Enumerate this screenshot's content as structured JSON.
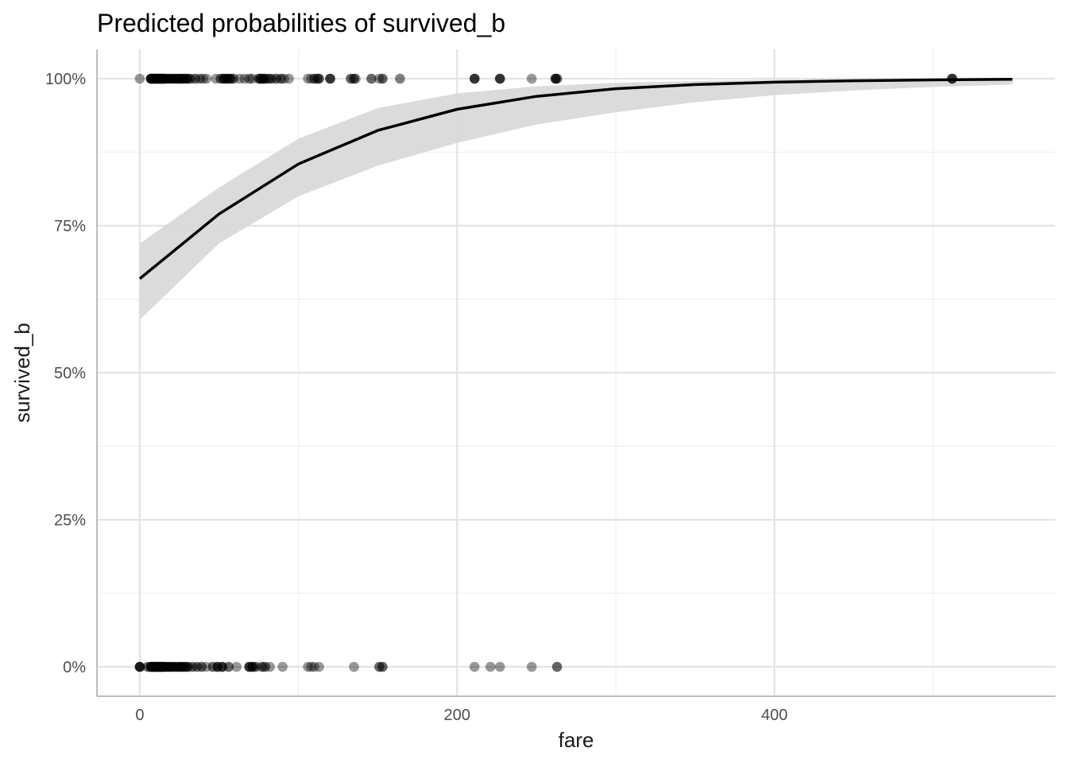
{
  "chart_data": {
    "type": "line",
    "title": "Predicted probabilities of survived_b",
    "xlabel": "fare",
    "ylabel": "survived_b",
    "xlim": [
      -27,
      577
    ],
    "ylim": [
      -0.05,
      1.05
    ],
    "x_ticks": [
      0,
      200,
      400
    ],
    "x_tick_labels": [
      "0",
      "200",
      "400"
    ],
    "x_minor_ticks": [
      100,
      300,
      500
    ],
    "y_ticks": [
      0,
      0.25,
      0.5,
      0.75,
      1.0
    ],
    "y_tick_labels": [
      "0%",
      "25%",
      "50%",
      "75%",
      "100%"
    ],
    "y_minor_ticks": [
      0.125,
      0.375,
      0.625,
      0.875
    ],
    "grid": true,
    "legend": "none",
    "colors": {
      "line": "#000000",
      "ribbon": "#d9d9d9",
      "points": "#000000"
    },
    "prediction": {
      "x": [
        0,
        50,
        100,
        150,
        200,
        250,
        300,
        350,
        400,
        450,
        500,
        550
      ],
      "y": [
        0.66,
        0.77,
        0.855,
        0.912,
        0.948,
        0.97,
        0.983,
        0.99,
        0.994,
        0.9965,
        0.998,
        0.999
      ],
      "ci_low": [
        0.59,
        0.72,
        0.8,
        0.852,
        0.891,
        0.922,
        0.943,
        0.96,
        0.972,
        0.98,
        0.986,
        0.99
      ],
      "ci_high": [
        0.72,
        0.815,
        0.898,
        0.95,
        0.975,
        0.987,
        0.993,
        0.996,
        0.998,
        0.999,
        0.9995,
        0.9998
      ]
    },
    "observations_survived": [
      {
        "x": 0,
        "o": 0.4
      },
      {
        "x": 7,
        "o": 0.9
      },
      {
        "x": 8,
        "o": 0.9
      },
      {
        "x": 9,
        "o": 0.9
      },
      {
        "x": 10,
        "o": 0.9
      },
      {
        "x": 11,
        "o": 0.9
      },
      {
        "x": 12,
        "o": 0.9
      },
      {
        "x": 13,
        "o": 0.9
      },
      {
        "x": 14,
        "o": 0.9
      },
      {
        "x": 15,
        "o": 0.9
      },
      {
        "x": 16,
        "o": 0.8
      },
      {
        "x": 18,
        "o": 0.8
      },
      {
        "x": 20,
        "o": 0.8
      },
      {
        "x": 22,
        "o": 0.8
      },
      {
        "x": 24,
        "o": 0.8
      },
      {
        "x": 26,
        "o": 0.9
      },
      {
        "x": 28,
        "o": 0.8
      },
      {
        "x": 30,
        "o": 0.8
      },
      {
        "x": 32,
        "o": 0.6
      },
      {
        "x": 35,
        "o": 0.6
      },
      {
        "x": 38,
        "o": 0.5
      },
      {
        "x": 40,
        "o": 0.4
      },
      {
        "x": 42,
        "o": 0.4
      },
      {
        "x": 48,
        "o": 0.4
      },
      {
        "x": 51,
        "o": 0.6
      },
      {
        "x": 53,
        "o": 0.8
      },
      {
        "x": 55,
        "o": 0.8
      },
      {
        "x": 57,
        "o": 0.8
      },
      {
        "x": 59,
        "o": 0.6
      },
      {
        "x": 63,
        "o": 0.4
      },
      {
        "x": 66,
        "o": 0.4
      },
      {
        "x": 69,
        "o": 0.5
      },
      {
        "x": 71,
        "o": 0.4
      },
      {
        "x": 75,
        "o": 0.6
      },
      {
        "x": 76,
        "o": 0.6
      },
      {
        "x": 77,
        "o": 0.6
      },
      {
        "x": 78,
        "o": 0.6
      },
      {
        "x": 79,
        "o": 0.6
      },
      {
        "x": 81,
        "o": 0.6
      },
      {
        "x": 83,
        "o": 0.6
      },
      {
        "x": 86,
        "o": 0.6
      },
      {
        "x": 89,
        "o": 0.6
      },
      {
        "x": 91,
        "o": 0.4
      },
      {
        "x": 94,
        "o": 0.4
      },
      {
        "x": 106,
        "o": 0.4
      },
      {
        "x": 108,
        "o": 0.4
      },
      {
        "x": 110,
        "o": 0.6
      },
      {
        "x": 112,
        "o": 0.6
      },
      {
        "x": 113,
        "o": 0.6
      },
      {
        "x": 120,
        "o": 0.8
      },
      {
        "x": 133,
        "o": 0.6
      },
      {
        "x": 135,
        "o": 0.6
      },
      {
        "x": 136,
        "o": 0.4
      },
      {
        "x": 146,
        "o": 0.6
      },
      {
        "x": 151,
        "o": 0.4
      },
      {
        "x": 153,
        "o": 0.6
      },
      {
        "x": 164,
        "o": 0.5
      },
      {
        "x": 211,
        "o": 0.8
      },
      {
        "x": 227,
        "o": 0.8
      },
      {
        "x": 247,
        "o": 0.4
      },
      {
        "x": 262,
        "o": 0.8
      },
      {
        "x": 263,
        "o": 0.6
      },
      {
        "x": 512,
        "o": 0.8
      }
    ],
    "observations_died": [
      {
        "x": 0,
        "o": 0.9
      },
      {
        "x": 5,
        "o": 0.6
      },
      {
        "x": 7,
        "o": 0.9
      },
      {
        "x": 8,
        "o": 0.9
      },
      {
        "x": 9,
        "o": 0.9
      },
      {
        "x": 10,
        "o": 0.9
      },
      {
        "x": 11,
        "o": 0.9
      },
      {
        "x": 12,
        "o": 0.9
      },
      {
        "x": 13,
        "o": 0.9
      },
      {
        "x": 14,
        "o": 0.9
      },
      {
        "x": 15,
        "o": 0.9
      },
      {
        "x": 16,
        "o": 0.9
      },
      {
        "x": 18,
        "o": 0.9
      },
      {
        "x": 20,
        "o": 0.9
      },
      {
        "x": 22,
        "o": 0.8
      },
      {
        "x": 24,
        "o": 0.8
      },
      {
        "x": 26,
        "o": 0.9
      },
      {
        "x": 28,
        "o": 0.8
      },
      {
        "x": 30,
        "o": 0.8
      },
      {
        "x": 33,
        "o": 0.6
      },
      {
        "x": 36,
        "o": 0.6
      },
      {
        "x": 39,
        "o": 0.6
      },
      {
        "x": 42,
        "o": 0.4
      },
      {
        "x": 46,
        "o": 0.6
      },
      {
        "x": 49,
        "o": 0.8
      },
      {
        "x": 52,
        "o": 0.8
      },
      {
        "x": 56,
        "o": 0.6
      },
      {
        "x": 61,
        "o": 0.4
      },
      {
        "x": 69,
        "o": 0.8
      },
      {
        "x": 71,
        "o": 0.8
      },
      {
        "x": 73,
        "o": 0.6
      },
      {
        "x": 77,
        "o": 0.6
      },
      {
        "x": 79,
        "o": 0.6
      },
      {
        "x": 82,
        "o": 0.4
      },
      {
        "x": 90,
        "o": 0.4
      },
      {
        "x": 106,
        "o": 0.4
      },
      {
        "x": 108,
        "o": 0.4
      },
      {
        "x": 110,
        "o": 0.4
      },
      {
        "x": 113,
        "o": 0.4
      },
      {
        "x": 135,
        "o": 0.4
      },
      {
        "x": 151,
        "o": 0.6
      },
      {
        "x": 153,
        "o": 0.6
      },
      {
        "x": 211,
        "o": 0.4
      },
      {
        "x": 221,
        "o": 0.4
      },
      {
        "x": 227,
        "o": 0.4
      },
      {
        "x": 247,
        "o": 0.4
      },
      {
        "x": 263,
        "o": 0.6
      }
    ]
  }
}
